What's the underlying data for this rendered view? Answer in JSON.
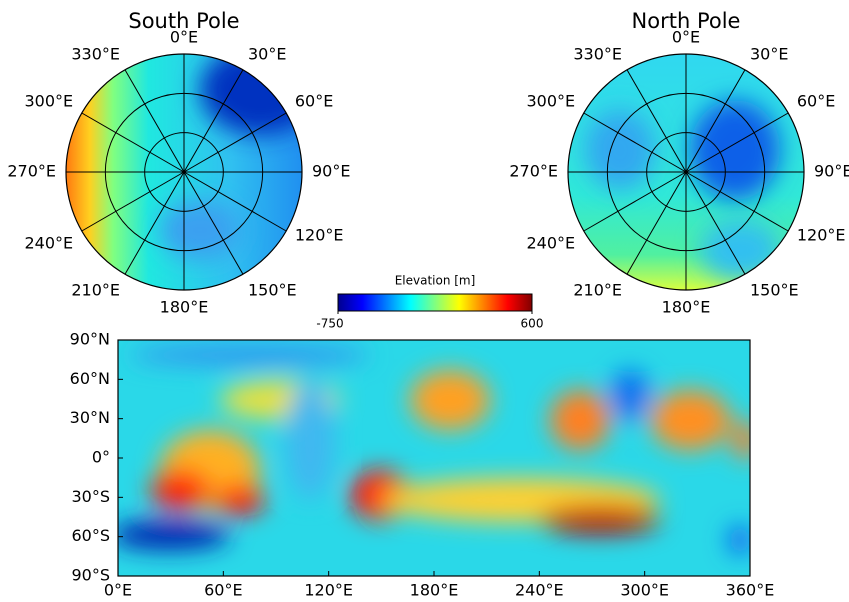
{
  "chart_data": [
    {
      "type": "polar",
      "title": "South Pole",
      "angle_ticks": [
        {
          "value": 0,
          "label": "0°E"
        },
        {
          "value": 30,
          "label": "30°E"
        },
        {
          "value": 60,
          "label": "60°E"
        },
        {
          "value": 90,
          "label": "90°E"
        },
        {
          "value": 120,
          "label": "120°E"
        },
        {
          "value": 150,
          "label": "150°E"
        },
        {
          "value": 180,
          "label": "180°E"
        },
        {
          "value": 210,
          "label": "210°E"
        },
        {
          "value": 240,
          "label": "240°E"
        },
        {
          "value": 270,
          "label": "270°E"
        },
        {
          "value": 300,
          "label": "300°E"
        },
        {
          "value": 330,
          "label": "330°E"
        }
      ]
    },
    {
      "type": "polar",
      "title": "North Pole",
      "angle_ticks": [
        {
          "value": 0,
          "label": "0°E"
        },
        {
          "value": 30,
          "label": "30°E"
        },
        {
          "value": 60,
          "label": "60°E"
        },
        {
          "value": 90,
          "label": "90°E"
        },
        {
          "value": 120,
          "label": "120°E"
        },
        {
          "value": 150,
          "label": "150°E"
        },
        {
          "value": 180,
          "label": "180°E"
        },
        {
          "value": 210,
          "label": "210°E"
        },
        {
          "value": 240,
          "label": "240°E"
        },
        {
          "value": 270,
          "label": "270°E"
        },
        {
          "value": 300,
          "label": "300°E"
        },
        {
          "value": 330,
          "label": "330°E"
        }
      ]
    },
    {
      "type": "colorbar",
      "label": "Elevation [m]",
      "colormap": "jet",
      "clim": [
        -750,
        600
      ],
      "cticks": [
        -750,
        600
      ]
    },
    {
      "type": "heatmap",
      "xlim": [
        0,
        360
      ],
      "xticks": [
        {
          "value": 0,
          "label": "0°E"
        },
        {
          "value": 60,
          "label": "60°E"
        },
        {
          "value": 120,
          "label": "120°E"
        },
        {
          "value": 180,
          "label": "180°E"
        },
        {
          "value": 240,
          "label": "240°E"
        },
        {
          "value": 300,
          "label": "300°E"
        },
        {
          "value": 360,
          "label": "360°E"
        }
      ],
      "ylim": [
        -90,
        90
      ],
      "yticks": [
        {
          "value": -90,
          "label": "90°S"
        },
        {
          "value": -60,
          "label": "60°S"
        },
        {
          "value": -30,
          "label": "30°S"
        },
        {
          "value": 0,
          "label": "0°"
        },
        {
          "value": 30,
          "label": "30°N"
        },
        {
          "value": 60,
          "label": "60°N"
        },
        {
          "value": 90,
          "label": "90°N"
        }
      ]
    }
  ]
}
